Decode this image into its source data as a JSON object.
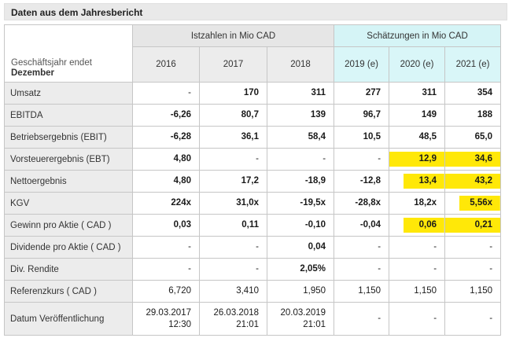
{
  "title": "Daten aus dem Jahresbericht",
  "table": {
    "row_header_line1": "Geschäftsjahr endet",
    "row_header_line2": "Dezember",
    "group_actual": "Istzahlen in Mio CAD",
    "group_estimates": "Schätzungen in Mio CAD",
    "columns": [
      "2016",
      "2017",
      "2018",
      "2019 (e)",
      "2020 (e)",
      "2021 (e)"
    ],
    "rows": [
      {
        "label": "Umsatz",
        "bold": true,
        "values": [
          "-",
          "170",
          "311",
          "277",
          "311",
          "354"
        ]
      },
      {
        "label": "EBITDA",
        "bold": true,
        "values": [
          "-6,26",
          "80,7",
          "139",
          "96,7",
          "149",
          "188"
        ]
      },
      {
        "label": "Betriebsergebnis (EBIT)",
        "bold": true,
        "values": [
          "-6,28",
          "36,1",
          "58,4",
          "10,5",
          "48,5",
          "65,0"
        ]
      },
      {
        "label": "Vorsteuerergebnis (EBT)",
        "bold": true,
        "values": [
          "4,80",
          "-",
          "-",
          "-",
          "12,9",
          "34,6"
        ],
        "highlights": [
          null,
          null,
          null,
          null,
          "full",
          "full"
        ]
      },
      {
        "label": "Nettoergebnis",
        "bold": true,
        "values": [
          "4,80",
          "17,2",
          "-18,9",
          "-12,8",
          "13,4",
          "43,2"
        ],
        "highlights": [
          null,
          null,
          null,
          null,
          "part",
          "full"
        ]
      },
      {
        "label": "KGV",
        "bold": true,
        "values": [
          "224x",
          "31,0x",
          "-19,5x",
          "-28,8x",
          "18,2x",
          "5,56x"
        ],
        "highlights": [
          null,
          null,
          null,
          null,
          null,
          "part"
        ]
      },
      {
        "label": "Gewinn pro Aktie ( CAD )",
        "bold": true,
        "values": [
          "0,03",
          "0,11",
          "-0,10",
          "-0,04",
          "0,06",
          "0,21"
        ],
        "highlights": [
          null,
          null,
          null,
          null,
          "part",
          "full"
        ]
      },
      {
        "label": "Dividende pro Aktie ( CAD )",
        "bold": true,
        "values": [
          "-",
          "-",
          "0,04",
          "-",
          "-",
          "-"
        ]
      },
      {
        "label": "Div. Rendite",
        "bold": true,
        "values": [
          "-",
          "-",
          "2,05%",
          "-",
          "-",
          "-"
        ]
      },
      {
        "label": "Referenzkurs ( CAD )",
        "bold": false,
        "values": [
          "6,720",
          "3,410",
          "1,950",
          "1,150",
          "1,150",
          "1,150"
        ]
      },
      {
        "label": "Datum Veröffentlichung",
        "bold": false,
        "tall": true,
        "values": [
          "29.03.2017\n12:30",
          "26.03.2018\n21:01",
          "20.03.2019\n21:01",
          "-",
          "-",
          "-"
        ]
      }
    ]
  },
  "colors": {
    "highlight": "#ffe808",
    "actuals_header_bg": "#e6e6e6",
    "actuals_year_bg": "#ececec",
    "estimates_header_bg": "#d5f4f6",
    "estimates_year_bg": "#d9f6f8",
    "title_bar_bg": "#e9e9e9"
  }
}
